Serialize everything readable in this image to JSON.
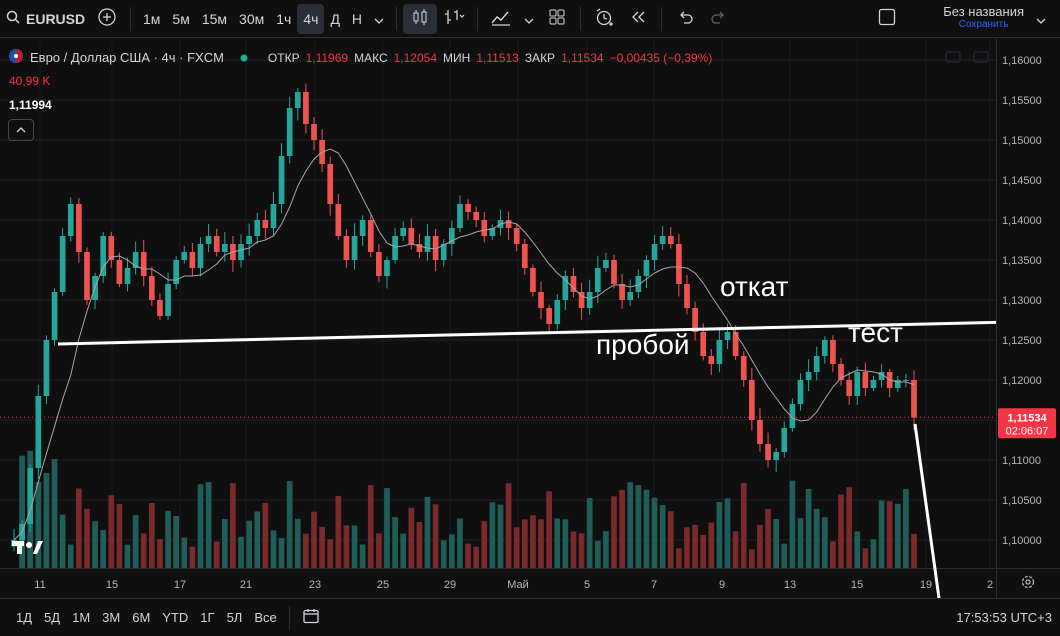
{
  "toolbar": {
    "symbol": "EURUSD",
    "intervals": [
      "1м",
      "5м",
      "15м",
      "30м",
      "1ч",
      "4ч",
      "Д",
      "Н"
    ],
    "active_interval": "4ч",
    "layout_name": "Без названия",
    "save_label": "Сохранить"
  },
  "legend": {
    "title": "Евро / Доллар США · 4ч · FXCM",
    "open_label": "ОТКР",
    "open": "1,11969",
    "high_label": "МАКС",
    "high": "1,12054",
    "low_label": "МИН",
    "low": "1,11513",
    "close_label": "ЗАКР",
    "close": "1,11534",
    "change": "−0,00435 (−0,39%)",
    "volume": "40,99 K",
    "ma_value": "1,11994"
  },
  "chart_data": {
    "type": "candlestick",
    "y_ticks": [
      "1,16000",
      "1,15500",
      "1,15000",
      "1,14500",
      "1,14000",
      "1,13500",
      "1,13000",
      "1,12500",
      "1,12000",
      "1,11500",
      "1,11000",
      "1,10500",
      "1,10000"
    ],
    "ylim": [
      1.0965,
      1.1625
    ],
    "x_ticks": [
      "11",
      "15",
      "17",
      "21",
      "23",
      "25",
      "29",
      "Май",
      "5",
      "7",
      "9",
      "13",
      "15",
      "19",
      "2"
    ],
    "last_price": "1,11534",
    "last_price_value": 1.11534,
    "countdown": "02:06:07",
    "annotations": [
      "откат",
      "пробой",
      "тест"
    ],
    "trendline": {
      "from": 1.1245,
      "to": 1.1272
    },
    "colors": {
      "up": "#26a69a",
      "down": "#ef5350",
      "vol_up": "#1f5e58",
      "vol_down": "#7a2a2c",
      "ma": "#a5a5a5",
      "price": "#f23645"
    },
    "path": [
      1.1,
      1.102,
      1.109,
      1.118,
      1.125,
      1.131,
      1.138,
      1.142,
      1.136,
      1.13,
      1.133,
      1.138,
      1.135,
      1.132,
      1.134,
      1.136,
      1.133,
      1.13,
      1.128,
      1.132,
      1.135,
      1.136,
      1.134,
      1.137,
      1.138,
      1.136,
      1.137,
      1.135,
      1.137,
      1.138,
      1.14,
      1.139,
      1.142,
      1.148,
      1.154,
      1.156,
      1.152,
      1.15,
      1.147,
      1.142,
      1.138,
      1.135,
      1.138,
      1.14,
      1.136,
      1.133,
      1.135,
      1.138,
      1.139,
      1.137,
      1.136,
      1.138,
      1.135,
      1.137,
      1.139,
      1.142,
      1.141,
      1.14,
      1.138,
      1.139,
      1.14,
      1.139,
      1.137,
      1.134,
      1.131,
      1.129,
      1.127,
      1.13,
      1.133,
      1.131,
      1.129,
      1.131,
      1.134,
      1.135,
      1.132,
      1.13,
      1.131,
      1.133,
      1.135,
      1.137,
      1.138,
      1.137,
      1.132,
      1.129,
      1.126,
      1.123,
      1.122,
      1.125,
      1.126,
      1.123,
      1.12,
      1.115,
      1.112,
      1.11,
      1.111,
      1.114,
      1.117,
      1.12,
      1.121,
      1.123,
      1.125,
      1.122,
      1.12,
      1.118,
      1.121,
      1.119,
      1.12,
      1.121,
      1.119,
      1.12,
      1.12,
      1.1153
    ]
  },
  "bottom": {
    "ranges": [
      "1Д",
      "5Д",
      "1М",
      "3М",
      "6М",
      "YTD",
      "1Г",
      "5Л",
      "Все"
    ],
    "clock": "17:53:53 UTC+3"
  }
}
